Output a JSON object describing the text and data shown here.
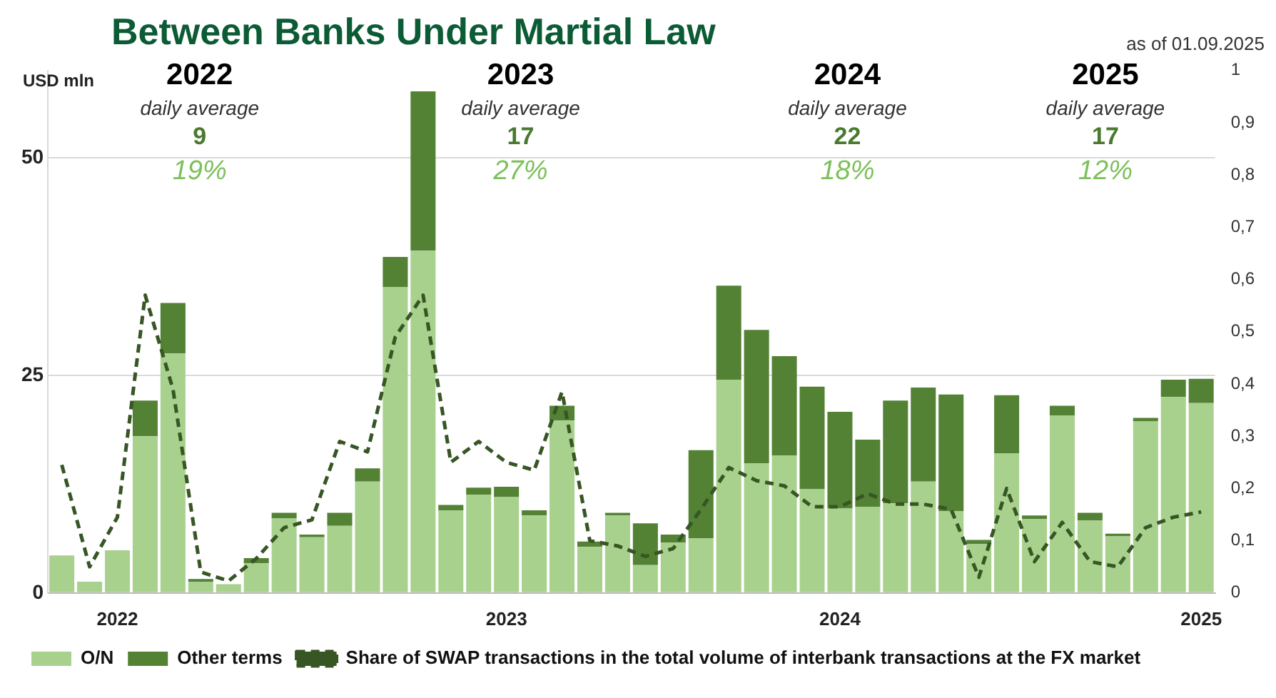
{
  "chart_data": {
    "type": "bar",
    "title": "Between Banks Under Martial Law",
    "subtitle": "as of 01.09.2025",
    "ylabel": "USD mln",
    "categories": [
      null,
      null,
      "2022",
      null,
      null,
      null,
      null,
      null,
      null,
      null,
      null,
      null,
      null,
      null,
      null,
      null,
      "2023",
      null,
      null,
      null,
      null,
      null,
      null,
      null,
      null,
      null,
      null,
      null,
      "2024",
      null,
      null,
      null,
      null,
      null,
      null,
      null,
      null,
      null,
      null,
      null,
      null,
      "2025"
    ],
    "stacked": true,
    "series": [
      {
        "name": "O/N",
        "color": "#a9d18e",
        "values": [
          4.3,
          1.3,
          4.9,
          18.0,
          27.5,
          1.3,
          1.0,
          3.4,
          8.6,
          6.4,
          7.7,
          12.8,
          35.1,
          39.3,
          9.5,
          11.3,
          11.0,
          8.9,
          19.8,
          5.3,
          8.9,
          3.2,
          5.8,
          6.3,
          24.5,
          14.9,
          15.8,
          11.9,
          9.7,
          9.9,
          10.3,
          12.8,
          9.4,
          5.6,
          16.0,
          8.5,
          20.4,
          8.3,
          6.5,
          19.7,
          22.5,
          21.8
        ]
      },
      {
        "name": "Other terms",
        "color": "#548235",
        "values": [
          0,
          0,
          0,
          4.1,
          5.8,
          0.3,
          0,
          0.6,
          0.6,
          0.3,
          1.5,
          1.5,
          3.5,
          18.3,
          0.6,
          0.8,
          1.2,
          0.6,
          1.7,
          0.6,
          0.3,
          4.8,
          0.9,
          10.1,
          10.8,
          15.3,
          11.4,
          11.8,
          11.1,
          7.7,
          11.8,
          10.8,
          13.4,
          0.5,
          6.7,
          0.4,
          1.1,
          0.9,
          0.3,
          0.4,
          2.0,
          2.8
        ]
      },
      {
        "name": "Share of SWAP transactions in the total volume of interbank transactions at the FX market",
        "type": "line",
        "axis": "y2",
        "color": "#375623",
        "line_style": "dashed",
        "marker": "none",
        "values": [
          0.245,
          0.05,
          0.145,
          0.57,
          0.39,
          0.04,
          0.023,
          0.066,
          0.125,
          0.14,
          0.29,
          0.27,
          0.49,
          0.57,
          0.25,
          0.29,
          0.25,
          0.235,
          0.385,
          0.1,
          0.09,
          0.07,
          0.085,
          0.16,
          0.24,
          0.215,
          0.205,
          0.165,
          0.165,
          0.19,
          0.17,
          0.17,
          0.16,
          0.03,
          0.2,
          0.06,
          0.135,
          0.06,
          0.05,
          0.125,
          0.145,
          0.155
        ]
      }
    ],
    "ylim": [
      0,
      60
    ],
    "yticks": [
      0,
      25,
      50
    ],
    "y2lim": [
      0,
      1
    ],
    "y2ticks": [
      0,
      {
        "value": 0.1,
        "label": "0,1"
      },
      {
        "value": 0.2,
        "label": "0,2"
      },
      {
        "value": 0.3,
        "label": "0,3"
      },
      {
        "value": 0.4,
        "label": "0,4"
      },
      {
        "value": 0.5,
        "label": "0,5"
      },
      {
        "value": 0.6,
        "label": "0,6"
      },
      {
        "value": 0.7,
        "label": "0,7"
      },
      {
        "value": 0.8,
        "label": "0,8"
      },
      {
        "value": 0.9,
        "label": "0,9"
      },
      1
    ],
    "grid": "y",
    "legend": "bottom",
    "annotations": [
      "2022",
      "daily average",
      "9",
      "19%",
      "2023",
      "daily average",
      "17",
      "27%",
      "2024",
      "daily average",
      "22",
      "18%",
      "2025",
      "daily average",
      "17",
      "12%"
    ]
  }
}
